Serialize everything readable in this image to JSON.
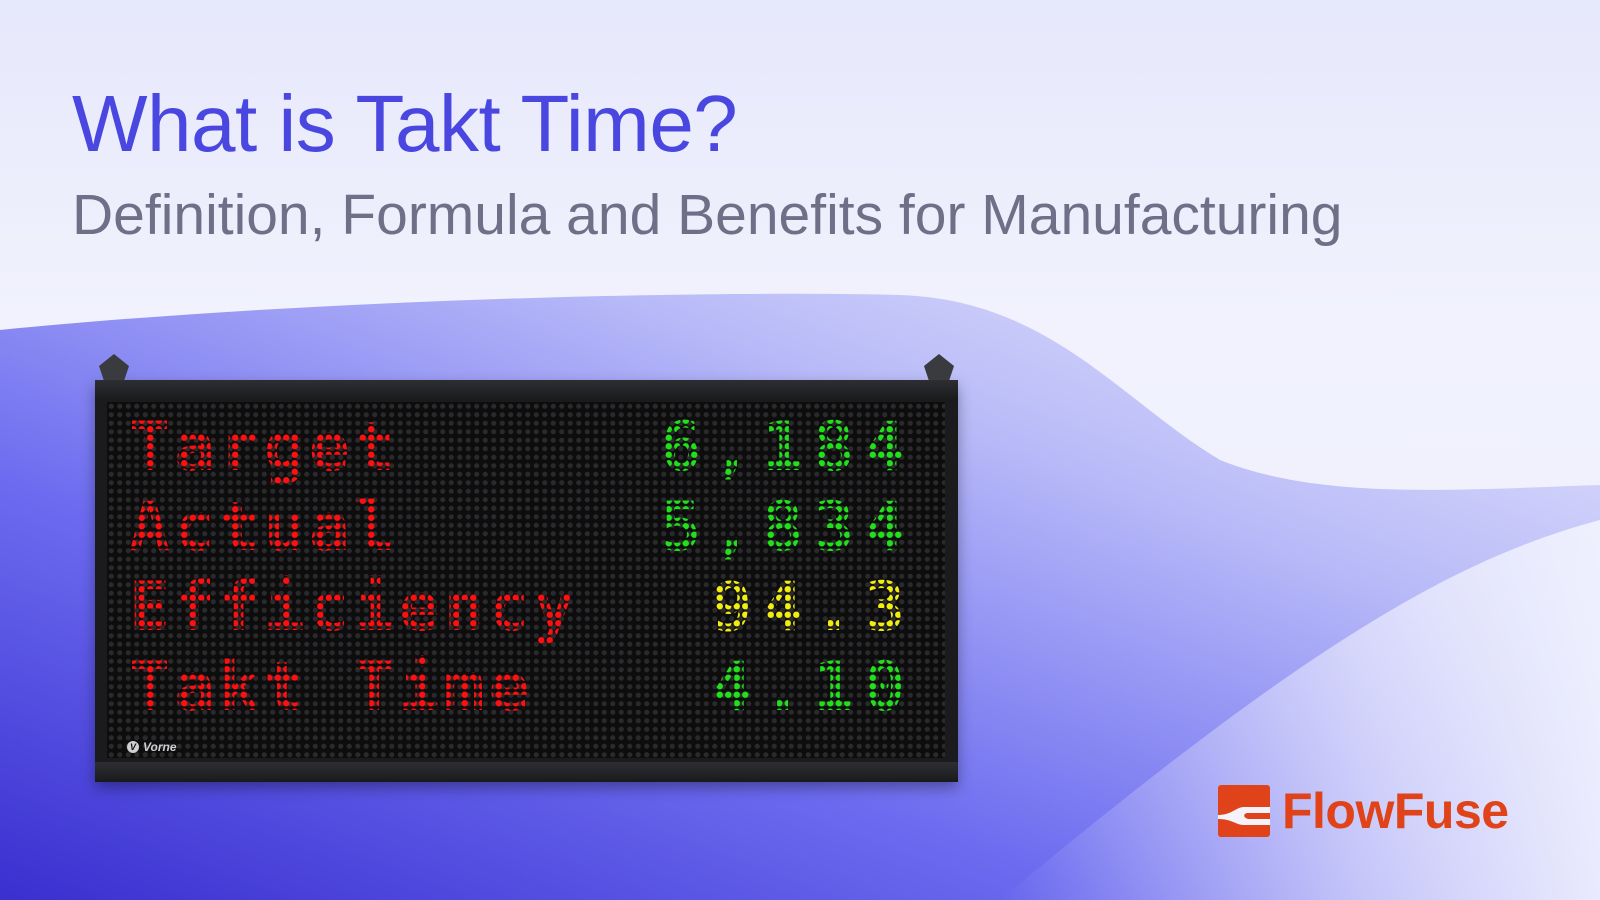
{
  "header": {
    "title": "What is Takt Time?",
    "subtitle": "Definition, Formula and Benefits for Manufacturing"
  },
  "display": {
    "brand": "Vorne",
    "rows": [
      {
        "label": "Target",
        "value": "6,184",
        "value_color": "#22e01a"
      },
      {
        "label": "Actual",
        "value": "5,834",
        "value_color": "#22e01a"
      },
      {
        "label": "Efficiency",
        "value": "94.3",
        "value_color": "#f2ee10"
      },
      {
        "label": "Takt Time",
        "value": "4.10",
        "value_color": "#22e01a"
      }
    ],
    "label_color": "#ff1010"
  },
  "logo": {
    "text": "FlowFuse",
    "color": "#e0431a"
  },
  "colors": {
    "title": "#4a47e0",
    "subtitle": "#6f7088",
    "wave": "#6a68ec"
  }
}
